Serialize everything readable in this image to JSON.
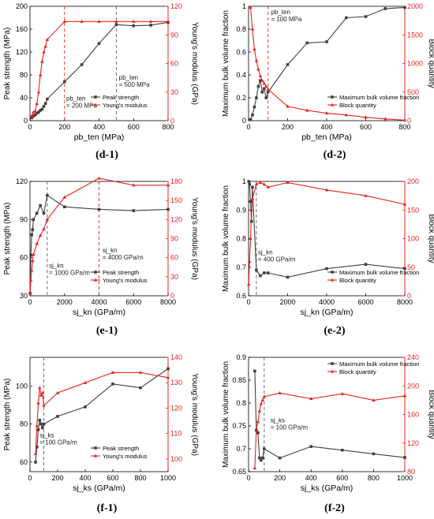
{
  "chart_data": [
    {
      "id": "d-1",
      "type": "line",
      "panel_label": "(d-1)",
      "xlabel": "pb_ten (MPa)",
      "ylabel": "Peak strength (MPa)",
      "y2label": "Young's modulus (GPa)",
      "xlim": [
        0,
        800
      ],
      "ylim": [
        0,
        200
      ],
      "y2lim": [
        0,
        120
      ],
      "xticks": [
        0,
        200,
        400,
        600,
        800
      ],
      "yticks": [
        0,
        40,
        80,
        120,
        160,
        200
      ],
      "y2ticks": [
        0,
        30,
        60,
        90,
        120
      ],
      "legend_position": "bottom-right",
      "series": [
        {
          "name": "Peak strength",
          "axis": "left",
          "color": "#404040",
          "marker": "square",
          "x": [
            10,
            20,
            30,
            40,
            50,
            60,
            70,
            80,
            90,
            100,
            200,
            300,
            400,
            500,
            600,
            700,
            800
          ],
          "y": [
            5,
            8,
            10,
            13,
            15,
            18,
            20,
            25,
            30,
            38,
            68,
            98,
            135,
            168,
            166,
            167,
            172
          ]
        },
        {
          "name": "Young's modulus",
          "axis": "right",
          "color": "#e8231e",
          "marker": "triangle",
          "x": [
            10,
            20,
            30,
            40,
            50,
            60,
            70,
            80,
            90,
            100,
            200,
            300,
            400,
            500,
            600,
            700,
            800
          ],
          "y": [
            5,
            9,
            10,
            18,
            30,
            48,
            62,
            72,
            78,
            85,
            104,
            104,
            104,
            104,
            104,
            104,
            104
          ]
        }
      ],
      "vlines": [
        {
          "x": 200,
          "color": "#e8231e",
          "label_lines": [
            "pb_ten",
            "= 200 MPa"
          ],
          "label_x": 210,
          "label_y": 35
        },
        {
          "x": 500,
          "color": "#606060",
          "label_lines": [
            "pb_ten",
            "= 500 MPa"
          ],
          "label_x": 515,
          "label_y": 72
        }
      ]
    },
    {
      "id": "d-2",
      "type": "line",
      "panel_label": "(d-2)",
      "xlabel": "pb_ten (MPa)",
      "ylabel": "Maximum bulk volume fraction",
      "y2label": "Block quantity",
      "xlim": [
        0,
        800
      ],
      "ylim": [
        0,
        1.0
      ],
      "y2lim": [
        0,
        2000
      ],
      "xticks": [
        0,
        200,
        400,
        600,
        800
      ],
      "yticks": [
        0.0,
        0.2,
        0.4,
        0.6,
        0.8,
        1.0
      ],
      "y2ticks": [
        0,
        500,
        1000,
        1500,
        2000
      ],
      "legend_position": "bottom-right",
      "series": [
        {
          "name": "Maximum bulk volume fraction",
          "axis": "left",
          "color": "#404040",
          "marker": "square",
          "x": [
            10,
            20,
            30,
            40,
            50,
            60,
            70,
            80,
            90,
            100,
            200,
            300,
            400,
            500,
            600,
            700,
            800
          ],
          "y": [
            0.01,
            0.05,
            0.12,
            0.2,
            0.3,
            0.35,
            0.25,
            0.28,
            0.2,
            0.25,
            0.49,
            0.68,
            0.69,
            0.9,
            0.91,
            0.98,
            0.99
          ]
        },
        {
          "name": "Block quantity",
          "axis": "right",
          "color": "#e8231e",
          "marker": "triangle",
          "x": [
            10,
            20,
            30,
            40,
            50,
            60,
            70,
            80,
            90,
            100,
            200,
            300,
            400,
            500,
            600,
            700,
            800
          ],
          "y": [
            1980,
            1600,
            1250,
            1050,
            900,
            780,
            700,
            650,
            600,
            550,
            250,
            180,
            130,
            100,
            60,
            30,
            10
          ]
        }
      ],
      "vlines": [
        {
          "x": 100,
          "color": "#e8231e",
          "label_lines": [
            "pb_ten",
            "= 100 MPa"
          ],
          "label_x": 115,
          "label_y": 0.93
        }
      ]
    },
    {
      "id": "e-1",
      "type": "line",
      "panel_label": "(e-1)",
      "xlabel": "sj_kn (GPa/m)",
      "ylabel": "Peak strength (MPa)",
      "y2label": "Young's modulus (GPa)",
      "xlim": [
        0,
        8000
      ],
      "ylim": [
        30,
        120
      ],
      "y2lim": [
        0,
        180
      ],
      "xticks": [
        0,
        2000,
        4000,
        6000,
        8000
      ],
      "yticks": [
        30,
        60,
        90,
        120
      ],
      "y2ticks": [
        0,
        30,
        60,
        90,
        120,
        150,
        180
      ],
      "legend_position": "bottom-right",
      "series": [
        {
          "name": "Peak strength",
          "axis": "left",
          "color": "#404040",
          "marker": "square",
          "x": [
            10,
            50,
            100,
            150,
            200,
            400,
            600,
            800,
            1000,
            2000,
            4000,
            6000,
            8000
          ],
          "y": [
            32,
            62,
            78,
            82,
            90,
            95,
            101,
            95,
            109,
            100,
            98,
            97,
            98
          ]
        },
        {
          "name": "Young's modulus",
          "axis": "right",
          "color": "#e8231e",
          "marker": "triangle",
          "x": [
            10,
            50,
            100,
            150,
            200,
            400,
            600,
            800,
            1000,
            2000,
            4000,
            6000,
            8000
          ],
          "y": [
            5,
            25,
            40,
            55,
            65,
            82,
            95,
            105,
            120,
            155,
            185,
            174,
            174
          ]
        }
      ],
      "vlines": [
        {
          "x": 1000,
          "color": "#606060",
          "label_lines": [
            "sj_kn",
            "= 1000 GPa/m"
          ],
          "label_x": 1100,
          "label_y": 52
        },
        {
          "x": 4000,
          "color": "#e8231e",
          "label_lines": [
            "sj_kn",
            "= 4000 GPa/m"
          ],
          "label_x": 4200,
          "label_y": 64
        }
      ]
    },
    {
      "id": "e-2",
      "type": "line",
      "panel_label": "(e-2)",
      "xlabel": "sj_kn (GPa/m)",
      "ylabel": "Maximum bulk volume fraction",
      "y2label": "Block quantity",
      "xlim": [
        0,
        8000
      ],
      "ylim": [
        0.6,
        1.0
      ],
      "y2lim": [
        0,
        200
      ],
      "xticks": [
        0,
        2000,
        4000,
        6000,
        8000
      ],
      "yticks": [
        0.6,
        0.7,
        0.8,
        0.9,
        1.0
      ],
      "y2ticks": [
        0,
        50,
        100,
        150,
        200
      ],
      "legend_position": "bottom-right",
      "series": [
        {
          "name": "Maximum bulk volume fraction",
          "axis": "left",
          "color": "#404040",
          "marker": "square",
          "x": [
            10,
            50,
            100,
            150,
            200,
            400,
            600,
            800,
            1000,
            2000,
            4000,
            6000,
            8000
          ],
          "y": [
            1.0,
            0.99,
            0.93,
            0.86,
            0.98,
            0.69,
            0.67,
            0.68,
            0.68,
            0.665,
            0.695,
            0.71,
            0.695
          ]
        },
        {
          "name": "Block quantity",
          "axis": "right",
          "color": "#e8231e",
          "marker": "triangle",
          "x": [
            10,
            50,
            100,
            150,
            200,
            400,
            600,
            800,
            1000,
            2000,
            4000,
            6000,
            8000
          ],
          "y": [
            20,
            60,
            100,
            150,
            170,
            195,
            198,
            195,
            190,
            198,
            185,
            175,
            160
          ]
        }
      ],
      "vlines": [
        {
          "x": 400,
          "color": "#606060",
          "label_lines": [
            "sj_kn",
            "= 400 GPa/m"
          ],
          "label_x": 480,
          "label_y": 0.745
        }
      ]
    },
    {
      "id": "f-1",
      "type": "line",
      "panel_label": "(f-1)",
      "xlabel": "sj_ks (GPa/m)",
      "ylabel": "Peak strength (MPa)",
      "y2label": "Young's modulus (GPa)",
      "xlim": [
        0,
        1000
      ],
      "ylim": [
        55,
        115
      ],
      "y2lim": [
        95,
        140
      ],
      "xticks": [
        0,
        200,
        400,
        600,
        800,
        1000
      ],
      "yticks": [
        60,
        80,
        100
      ],
      "y2ticks": [
        100,
        110,
        120,
        130,
        140
      ],
      "legend_position": "bottom-right",
      "series": [
        {
          "name": "Peak strength",
          "axis": "left",
          "color": "#404040",
          "marker": "square",
          "x": [
            40,
            50,
            60,
            70,
            80,
            90,
            100,
            200,
            400,
            600,
            800,
            1000
          ],
          "y": [
            60,
            68,
            77,
            82,
            80,
            78,
            80,
            84,
            89,
            101,
            99,
            109
          ]
        },
        {
          "name": "Young's modulus",
          "axis": "right",
          "color": "#e8231e",
          "marker": "triangle",
          "x": [
            40,
            50,
            60,
            70,
            80,
            90,
            100,
            200,
            400,
            600,
            800,
            1000
          ],
          "y": [
            102,
            113,
            122,
            128,
            125,
            126,
            121,
            126,
            130,
            134,
            134,
            132
          ]
        }
      ],
      "vlines": [
        {
          "x": 100,
          "color": "#606060",
          "label_lines": [
            "sj_ks",
            "= 100 GPa/m"
          ],
          "label_x": 70,
          "label_y": 73
        }
      ]
    },
    {
      "id": "f-2",
      "type": "line",
      "panel_label": "(f-2)",
      "xlabel": "sj_ks (GPa/m)",
      "ylabel": "Maximum bulk volume fraction",
      "y2label": "Block quantity",
      "xlim": [
        0,
        1000
      ],
      "ylim": [
        0.65,
        0.9
      ],
      "y2lim": [
        80,
        240
      ],
      "xticks": [
        0,
        200,
        400,
        600,
        800,
        1000
      ],
      "yticks": [
        0.65,
        0.7,
        0.75,
        0.8,
        0.85,
        0.9
      ],
      "y2ticks": [
        80,
        120,
        160,
        200,
        240
      ],
      "legend_position": "top-right",
      "series": [
        {
          "name": "Maximum bulk volume fraction",
          "axis": "left",
          "color": "#404040",
          "marker": "square",
          "x": [
            40,
            50,
            60,
            70,
            80,
            90,
            100,
            200,
            400,
            600,
            800,
            1000
          ],
          "y": [
            0.87,
            0.74,
            0.735,
            0.68,
            0.675,
            0.68,
            0.7,
            0.68,
            0.705,
            0.697,
            0.689,
            0.681
          ]
        },
        {
          "name": "Block quantity",
          "axis": "right",
          "color": "#e8231e",
          "marker": "triangle",
          "x": [
            40,
            50,
            60,
            70,
            80,
            90,
            100,
            200,
            400,
            600,
            800,
            1000
          ],
          "y": [
            85,
            140,
            150,
            165,
            175,
            180,
            185,
            190,
            182,
            189,
            180,
            186
          ]
        }
      ],
      "vlines": [
        {
          "x": 100,
          "color": "#606060",
          "label_lines": [
            "sj_ks",
            "= 100 GPa/m"
          ],
          "label_x": 140,
          "label_y": 0.758
        }
      ]
    }
  ]
}
